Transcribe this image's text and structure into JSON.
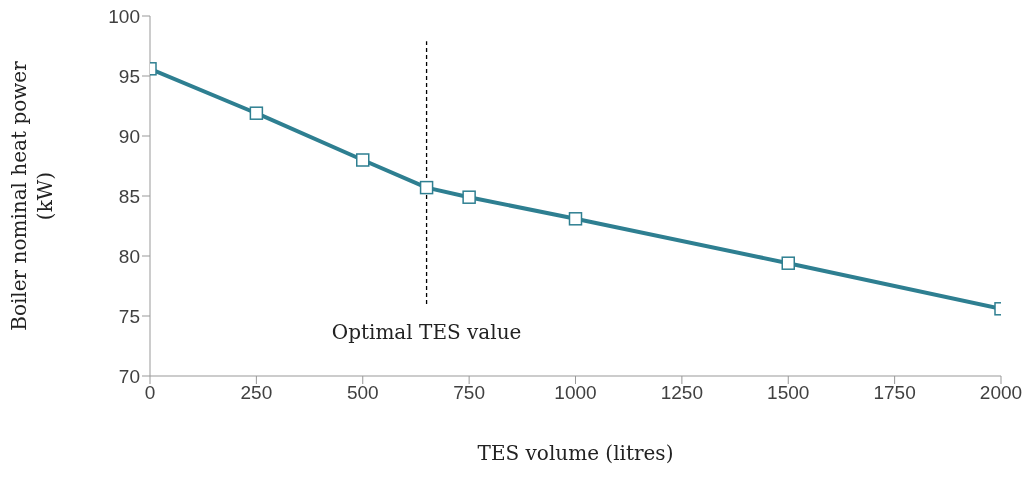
{
  "chart_data": {
    "type": "line",
    "xlabel": "TES volume (litres)",
    "ylabel": "Boiler nominal heat power (kW)",
    "x": [
      0,
      250,
      500,
      650,
      750,
      1000,
      1500,
      2000
    ],
    "series": [
      {
        "color": "#2e7f91",
        "values": [
          95.6,
          91.9,
          88.0,
          85.7,
          84.9,
          83.1,
          79.4,
          75.6
        ]
      }
    ],
    "xlim": [
      0,
      2000
    ],
    "xticks": [
      0,
      250,
      500,
      750,
      1000,
      1250,
      1500,
      1750,
      2000
    ],
    "ylim": [
      70,
      100
    ],
    "yticks": [
      70,
      75,
      80,
      85,
      90,
      95,
      100
    ],
    "ref_lines": [
      {
        "axis": "x",
        "value": 650,
        "label": "Optimal TES value",
        "color": "#000000",
        "line_style": "dashed"
      }
    ],
    "grid": false,
    "legend": false,
    "marker": "square",
    "line_style": "solid"
  }
}
